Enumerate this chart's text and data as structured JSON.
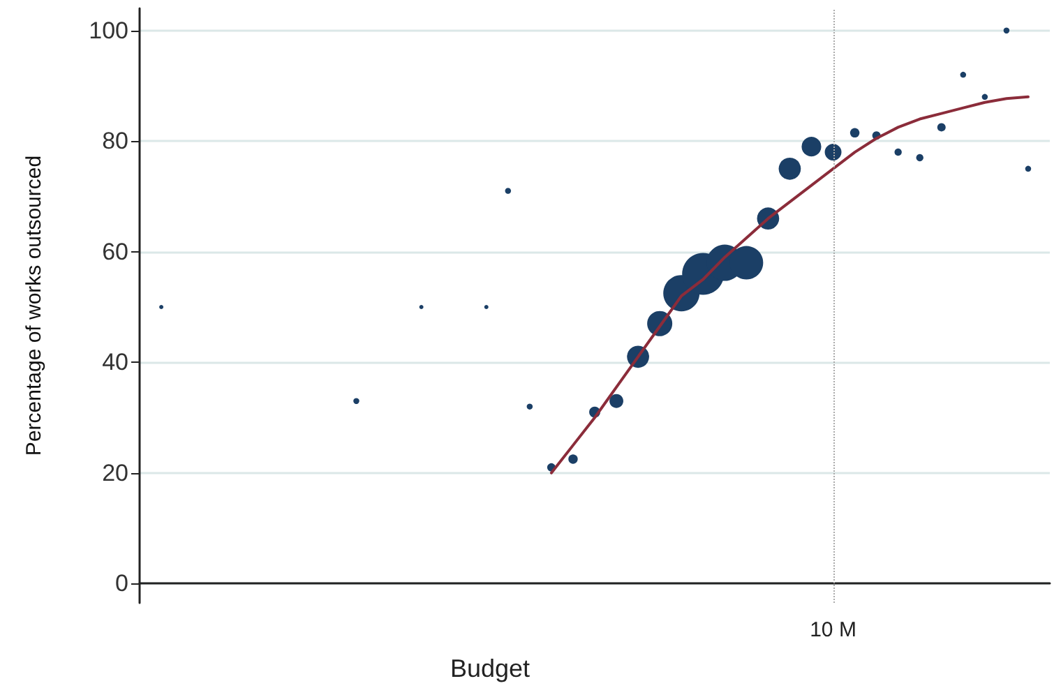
{
  "chart_data": {
    "type": "bubble",
    "xlabel": "Budget",
    "ylabel": "Percentage of works outsourced",
    "categories": [
      null,
      null,
      null,
      null,
      null,
      null,
      null,
      null,
      null,
      null,
      null,
      null,
      null,
      null,
      null,
      null,
      null,
      null,
      null,
      null,
      null,
      null,
      null,
      null,
      null,
      null,
      null,
      null,
      null,
      null,
      null,
      null,
      null,
      null,
      null,
      null,
      null,
      null,
      null,
      null,
      null
    ],
    "series": [
      {
        "color": "#1b3f66",
        "values": [
          50,
          null,
          null,
          null,
          null,
          null,
          null,
          null,
          null,
          33,
          null,
          null,
          50,
          null,
          null,
          50,
          71,
          32,
          21,
          22.5,
          31,
          33,
          41,
          47,
          52.5,
          56,
          58,
          58,
          66,
          75,
          79,
          78,
          81.5,
          81,
          78,
          77,
          82.5,
          92,
          88,
          100,
          75
        ],
        "sizes": [
          0.01,
          null,
          null,
          null,
          null,
          null,
          null,
          null,
          null,
          0.02,
          null,
          null,
          0.01,
          null,
          null,
          0.01,
          0.02,
          0.02,
          0.04,
          0.05,
          0.07,
          0.11,
          0.28,
          0.36,
          0.75,
          1,
          0.75,
          0.64,
          0.28,
          0.28,
          0.22,
          0.16,
          0.05,
          0.04,
          0.03,
          0.03,
          0.04,
          0.02,
          0.02,
          0.02,
          0.02
        ]
      },
      {
        "type": "line",
        "color": "#8b2c3a",
        "values": [
          null,
          null,
          null,
          null,
          null,
          null,
          null,
          null,
          null,
          null,
          null,
          null,
          null,
          null,
          null,
          null,
          null,
          null,
          20,
          25,
          30,
          35.5,
          41,
          46.5,
          52,
          55,
          59,
          62.5,
          66,
          69,
          72,
          75,
          78,
          80.5,
          82.5,
          84,
          85,
          86,
          87,
          87.7,
          88
        ]
      }
    ],
    "ylim": [
      -3.5,
      104
    ],
    "yticks": [
      0,
      20,
      40,
      60,
      80,
      100
    ],
    "grid": "y",
    "annotations": [
      "10 M"
    ]
  }
}
